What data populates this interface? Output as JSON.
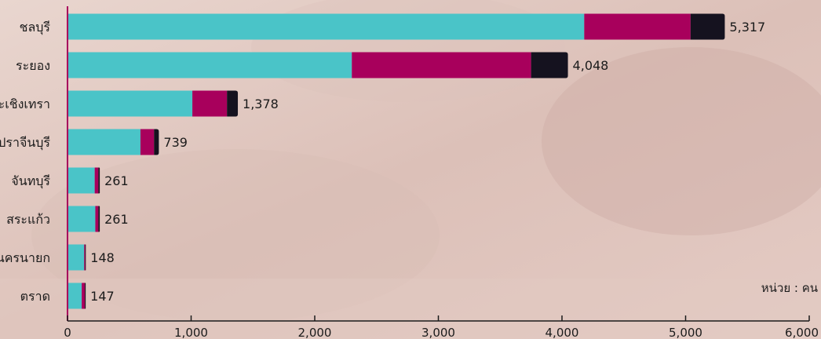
{
  "chart_data": {
    "type": "bar",
    "orientation": "horizontal",
    "stacked": true,
    "categories": [
      "ชลบุรี",
      "ระยอง",
      "ฉะเชิงเทรา",
      "ปราจีนบุรี",
      "จันทบุรี",
      "สระแก้ว",
      "นครนายก",
      "ตราด"
    ],
    "series": [
      {
        "values": [
          4180,
          2300,
          1010,
          590,
          220,
          225,
          135,
          115
        ],
        "color": "#4ac4c8"
      },
      {
        "values": [
          860,
          1450,
          280,
          110,
          30,
          25,
          8,
          25
        ],
        "color": "#a8005c"
      },
      {
        "values": [
          277,
          298,
          88,
          39,
          11,
          11,
          5,
          7
        ],
        "color": "#15121f"
      }
    ],
    "totals": [
      5317,
      4048,
      1378,
      739,
      261,
      261,
      148,
      147
    ],
    "total_labels": [
      "5,317",
      "4,048",
      "1,378",
      "739",
      "261",
      "261",
      "148",
      "147"
    ],
    "xlim": [
      0,
      6000
    ],
    "xticks": [
      0,
      1000,
      2000,
      3000,
      4000,
      5000,
      6000
    ],
    "xtick_labels": [
      "0",
      "1,000",
      "2,000",
      "3,000",
      "4,000",
      "5,000",
      "6,000"
    ],
    "unit_label": "หน่วย : คน",
    "grid": false,
    "legend": "none",
    "axis_color": "#a8005c"
  }
}
